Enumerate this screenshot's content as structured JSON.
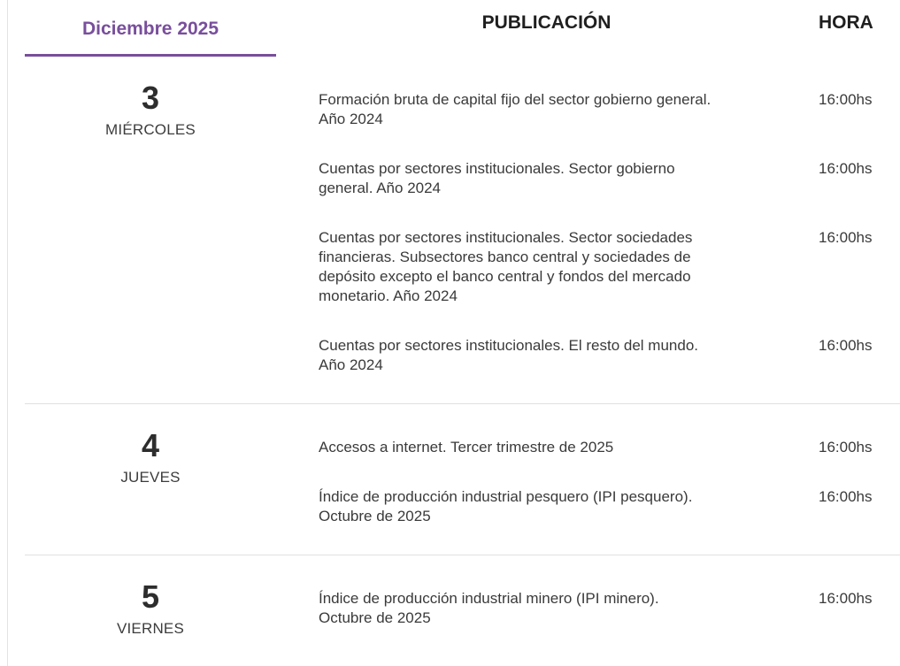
{
  "header": {
    "month": "Diciembre 2025",
    "publication_label": "PUBLICACIÓN",
    "time_label": "HORA"
  },
  "colors": {
    "accent_purple": "#794f9c",
    "divider": "#e0e0e0",
    "text_dark": "#1f1f1f",
    "text_body": "#3a3a3a"
  },
  "sections": [
    {
      "day_number": "3",
      "day_name": "MIÉRCOLES",
      "publications": [
        {
          "title": "Formación bruta de capital fijo del sector gobierno general.\nAño 2024",
          "time": "16:00hs"
        },
        {
          "title": "Cuentas por sectores institucionales. Sector gobierno\ngeneral. Año 2024",
          "time": "16:00hs"
        },
        {
          "title": "Cuentas por sectores institucionales. Sector sociedades\nfinancieras. Subsectores banco central y sociedades de\ndepósito excepto el banco central y fondos del mercado\nmonetario. Año 2024",
          "time": "16:00hs"
        },
        {
          "title": "Cuentas por sectores institucionales. El resto del mundo.\nAño 2024",
          "time": "16:00hs"
        }
      ]
    },
    {
      "day_number": "4",
      "day_name": "JUEVES",
      "publications": [
        {
          "title": "Accesos a internet. Tercer trimestre de 2025",
          "time": "16:00hs"
        },
        {
          "title": "Índice de producción industrial pesquero (IPI pesquero).\nOctubre de 2025",
          "time": "16:00hs"
        }
      ]
    },
    {
      "day_number": "5",
      "day_name": "VIERNES",
      "publications": [
        {
          "title": "Índice de producción industrial minero (IPI minero).\nOctubre de 2025",
          "time": "16:00hs"
        }
      ]
    }
  ]
}
